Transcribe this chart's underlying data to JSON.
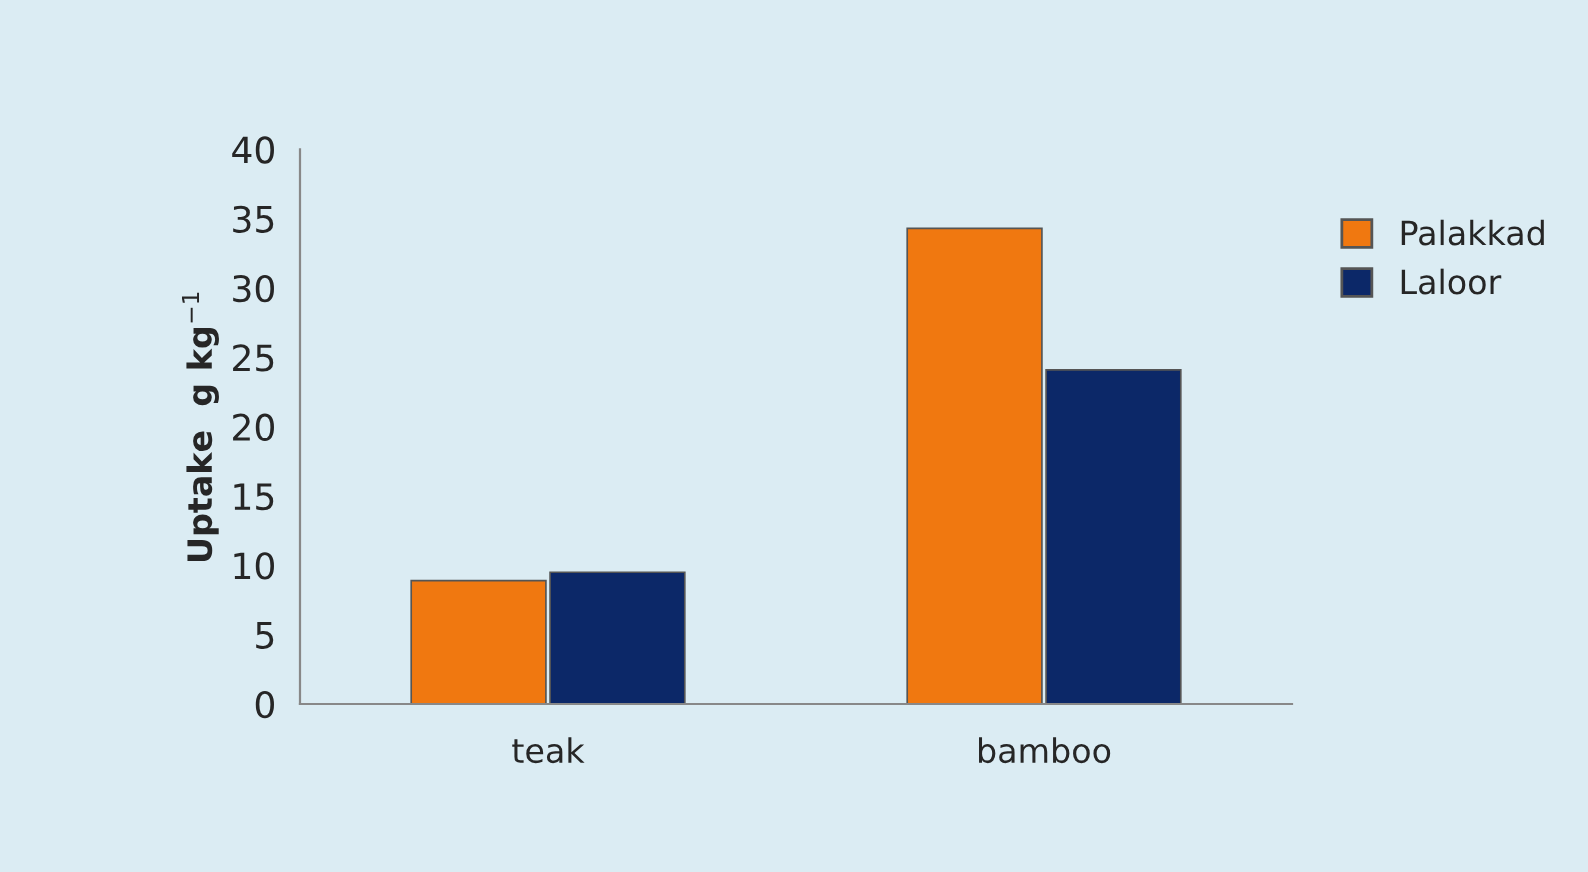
{
  "chart_data": {
    "type": "bar",
    "ylabel": "Uptake  g kg$^{−1}$",
    "categories": [
      "teak",
      "bamboo"
    ],
    "series": [
      {
        "name": "Palakkad",
        "color": "#f07810",
        "values": [
          8.9,
          34.3
        ]
      },
      {
        "name": "Laloor",
        "color": "#0c2868",
        "values": [
          9.5,
          24.1
        ]
      }
    ],
    "ylim": [
      0,
      40
    ],
    "yticks": [
      0,
      5,
      10,
      15,
      20,
      25,
      30,
      35,
      40
    ],
    "grid": false,
    "legend": "right"
  }
}
